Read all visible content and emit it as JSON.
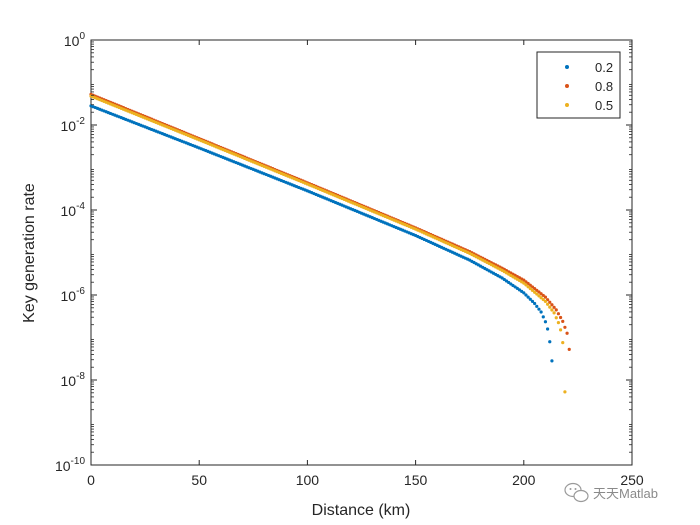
{
  "chart_data": {
    "type": "scatter",
    "title": "",
    "xlabel": "Distance (km)",
    "ylabel": "Key generation rate",
    "xlim": [
      0,
      250
    ],
    "ylim_log10": [
      -10,
      0
    ],
    "y_scale": "log",
    "x_ticks": [
      {
        "value": 0,
        "label": "0"
      },
      {
        "value": 50,
        "label": "50"
      },
      {
        "value": 100,
        "label": "100"
      },
      {
        "value": 150,
        "label": "150"
      },
      {
        "value": 200,
        "label": "200"
      },
      {
        "value": 250,
        "label": "250"
      }
    ],
    "y_ticks": [
      {
        "exp": 0,
        "base": "10",
        "sup": "0"
      },
      {
        "exp": -2,
        "base": "10",
        "sup": "-2"
      },
      {
        "exp": -4,
        "base": "10",
        "sup": "-4"
      },
      {
        "exp": -6,
        "base": "10",
        "sup": "-6"
      },
      {
        "exp": -8,
        "base": "10",
        "sup": "-8"
      },
      {
        "exp": -10,
        "base": "10",
        "sup": "-10"
      }
    ],
    "legend_position": "top-right",
    "grid": false,
    "series": [
      {
        "name": "0.2",
        "color": "#0072BD",
        "description": "log10 rate vs distance, dense dots every ~1 km",
        "anchors": [
          [
            0,
            -1.55
          ],
          [
            50,
            -2.54
          ],
          [
            100,
            -3.55
          ],
          [
            150,
            -4.6
          ],
          [
            175,
            -5.18
          ],
          [
            190,
            -5.6
          ],
          [
            200,
            -5.95
          ],
          [
            205,
            -6.2
          ],
          [
            208,
            -6.4
          ],
          [
            210,
            -6.63
          ],
          [
            211,
            -6.8
          ],
          [
            212,
            -7.1
          ],
          [
            213,
            -7.55
          ]
        ]
      },
      {
        "name": "0.8",
        "color": "#D95319",
        "description": "log10 rate vs distance, dense dots every ~1 km",
        "anchors": [
          [
            0,
            -1.28
          ],
          [
            50,
            -2.32
          ],
          [
            100,
            -3.36
          ],
          [
            150,
            -4.42
          ],
          [
            175,
            -4.98
          ],
          [
            190,
            -5.37
          ],
          [
            200,
            -5.65
          ],
          [
            210,
            -6.05
          ],
          [
            215,
            -6.35
          ],
          [
            218,
            -6.62
          ],
          [
            220,
            -6.9
          ],
          [
            221,
            -7.28
          ]
        ]
      },
      {
        "name": "0.5",
        "color": "#EDB120",
        "description": "log10 rate vs distance, dense dots every ~1 km",
        "anchors": [
          [
            0,
            -1.32
          ],
          [
            50,
            -2.35
          ],
          [
            100,
            -3.39
          ],
          [
            150,
            -4.45
          ],
          [
            175,
            -5.02
          ],
          [
            190,
            -5.42
          ],
          [
            200,
            -5.72
          ],
          [
            210,
            -6.15
          ],
          [
            214,
            -6.42
          ],
          [
            216,
            -6.65
          ],
          [
            217,
            -6.82
          ],
          [
            218,
            -7.12
          ],
          [
            219,
            -8.28
          ]
        ]
      }
    ]
  },
  "watermark": {
    "text": "天天Matlab",
    "icon": "wechat-icon"
  }
}
